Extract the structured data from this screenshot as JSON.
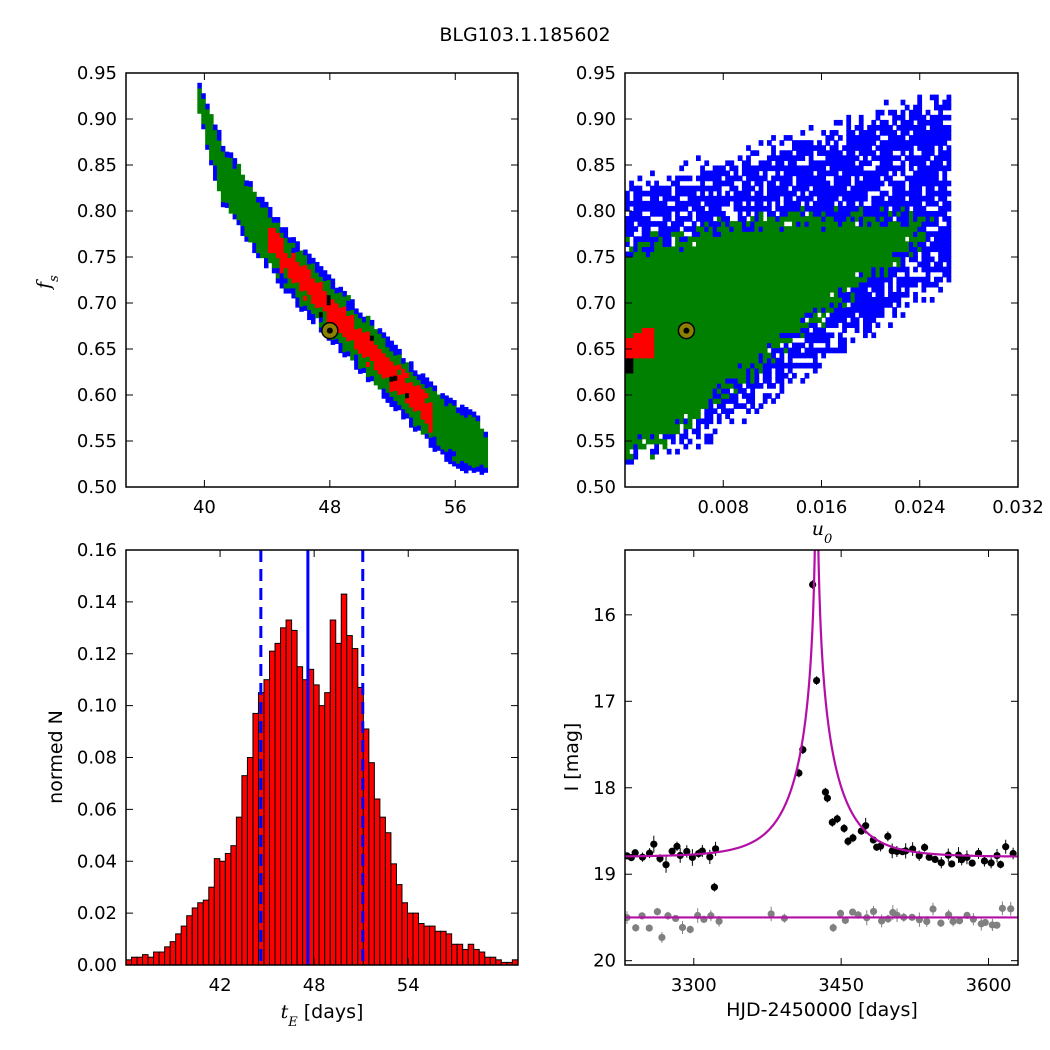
{
  "figure_title": "BLG103.1.185602",
  "colors": {
    "blue": "#0000ff",
    "green": "#008000",
    "red": "#ff0000",
    "black": "#000000",
    "gray": "#808080",
    "magenta": "#b30fa6",
    "marker_fill": "#8c8000",
    "marker_edge": "#000000"
  },
  "chart_data": [
    {
      "type": "heatmap",
      "panel": "top-left",
      "ylabel": "f_s",
      "xlabel": "",
      "xlim": [
        35,
        60
      ],
      "ylim": [
        0.5,
        0.95
      ],
      "xticks": [
        "40",
        "48",
        "56"
      ],
      "yticks": [
        "0.50",
        "0.55",
        "0.60",
        "0.65",
        "0.70",
        "0.75",
        "0.80",
        "0.85",
        "0.90",
        "0.95"
      ],
      "best_fit": {
        "tE": 48.0,
        "fs": 0.67
      },
      "band_centerline": [
        [
          39.5,
          0.92
        ],
        [
          41.0,
          0.84
        ],
        [
          43.0,
          0.79
        ],
        [
          45.5,
          0.735
        ],
        [
          48.0,
          0.69
        ],
        [
          50.5,
          0.645
        ],
        [
          53.0,
          0.6
        ],
        [
          55.0,
          0.565
        ],
        [
          58.0,
          0.535
        ]
      ],
      "regions": [
        "blue",
        "green",
        "red",
        "black"
      ]
    },
    {
      "type": "heatmap",
      "panel": "top-right",
      "ylabel": "",
      "xlabel": "u_0",
      "xlim": [
        0.0,
        0.032
      ],
      "ylim": [
        0.5,
        0.95
      ],
      "xticks": [
        "0.008",
        "0.016",
        "0.024",
        "0.032"
      ],
      "yticks": [
        "0.50",
        "0.55",
        "0.60",
        "0.65",
        "0.70",
        "0.75",
        "0.80",
        "0.85",
        "0.90",
        "0.95"
      ],
      "best_fit": {
        "u0": 0.005,
        "fs": 0.67
      },
      "regions": [
        "blue",
        "green",
        "red",
        "black"
      ]
    },
    {
      "type": "bar",
      "panel": "bottom-left",
      "xlabel_math": "t_E",
      "xlabel_text": "[days]",
      "ylabel": "normed N",
      "xlim": [
        36.0,
        61.0
      ],
      "ylim": [
        0.0,
        0.16
      ],
      "xticks": [
        "42",
        "48",
        "54"
      ],
      "yticks": [
        "0.00",
        "0.02",
        "0.04",
        "0.06",
        "0.08",
        "0.10",
        "0.12",
        "0.14",
        "0.16"
      ],
      "bin_start": 36.0,
      "bin_width": 0.352,
      "values": [
        0.002,
        0.003,
        0.003,
        0.004,
        0.003,
        0.005,
        0.005,
        0.007,
        0.009,
        0.012,
        0.015,
        0.019,
        0.022,
        0.024,
        0.025,
        0.03,
        0.041,
        0.04,
        0.043,
        0.046,
        0.057,
        0.073,
        0.08,
        0.097,
        0.105,
        0.11,
        0.121,
        0.124,
        0.13,
        0.133,
        0.129,
        0.115,
        0.11,
        0.114,
        0.108,
        0.1,
        0.105,
        0.133,
        0.124,
        0.143,
        0.127,
        0.122,
        0.107,
        0.091,
        0.078,
        0.064,
        0.057,
        0.051,
        0.039,
        0.031,
        0.024,
        0.02,
        0.02,
        0.016,
        0.015,
        0.015,
        0.013,
        0.013,
        0.012,
        0.008,
        0.008,
        0.006,
        0.008,
        0.006,
        0.005,
        0.003,
        0.003,
        0.002,
        0.001,
        0.001,
        0.002
      ],
      "median_line": 47.6,
      "interval_lines": [
        44.6,
        51.1
      ]
    },
    {
      "type": "scatter",
      "panel": "bottom-right",
      "xlabel": "HJD-2450000 [days]",
      "ylabel": "I [mag]",
      "xlim": [
        3230,
        3630
      ],
      "ylim": [
        20.05,
        15.25
      ],
      "xticks": [
        "3300",
        "3450",
        "3600"
      ],
      "yticks": [
        "16",
        "17",
        "18",
        "19",
        "20"
      ],
      "model": {
        "t0": 3425,
        "u0": 0.005,
        "tE": 48.0,
        "baseline": 18.8
      },
      "baseline_gray": 19.5,
      "peak_points": [
        [
          3421,
          15.65
        ],
        [
          3425,
          16.76
        ],
        [
          3411,
          17.56
        ],
        [
          3407,
          17.83
        ],
        [
          3434,
          18.05
        ],
        [
          3436,
          18.12
        ],
        [
          3441,
          18.4
        ],
        [
          3446,
          18.36
        ],
        [
          3453,
          18.47
        ],
        [
          3457,
          18.62
        ],
        [
          3462,
          18.58
        ],
        [
          3321,
          19.15
        ]
      ]
    }
  ]
}
